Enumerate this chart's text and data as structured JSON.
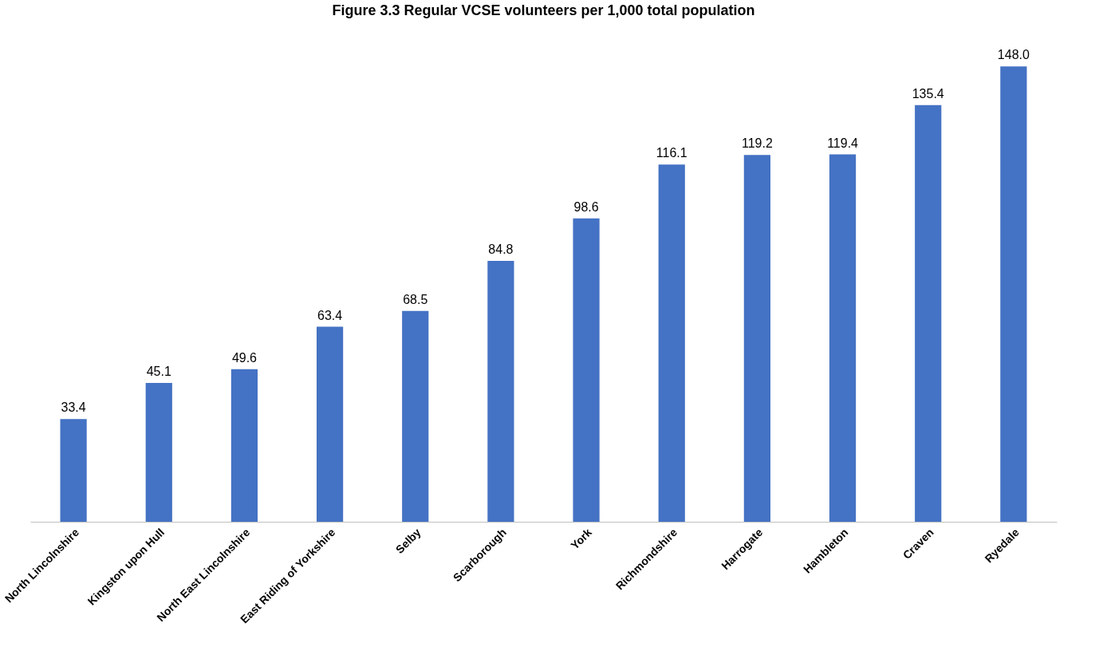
{
  "chart_data": {
    "type": "bar",
    "title": "Figure 3.3   Regular VCSE volunteers per 1,000 total population",
    "categories": [
      "North Lincolnshire",
      "Kingston upon Hull",
      "North East Lincolnshire",
      "East Riding of Yorkshire",
      "Selby",
      "Scarborough",
      "York",
      "Richmondshire",
      "Harrogate",
      "Hambleton",
      "Craven",
      "Ryedale"
    ],
    "values": [
      33.4,
      45.1,
      49.6,
      63.4,
      68.5,
      84.8,
      98.6,
      116.1,
      119.2,
      119.4,
      135.4,
      148.0
    ],
    "value_labels": [
      "33.4",
      "45.1",
      "49.6",
      "63.4",
      "68.5",
      "84.8",
      "98.6",
      "116.1",
      "119.2",
      "119.4",
      "135.4",
      "148.0"
    ],
    "color": "#4472c4"
  }
}
